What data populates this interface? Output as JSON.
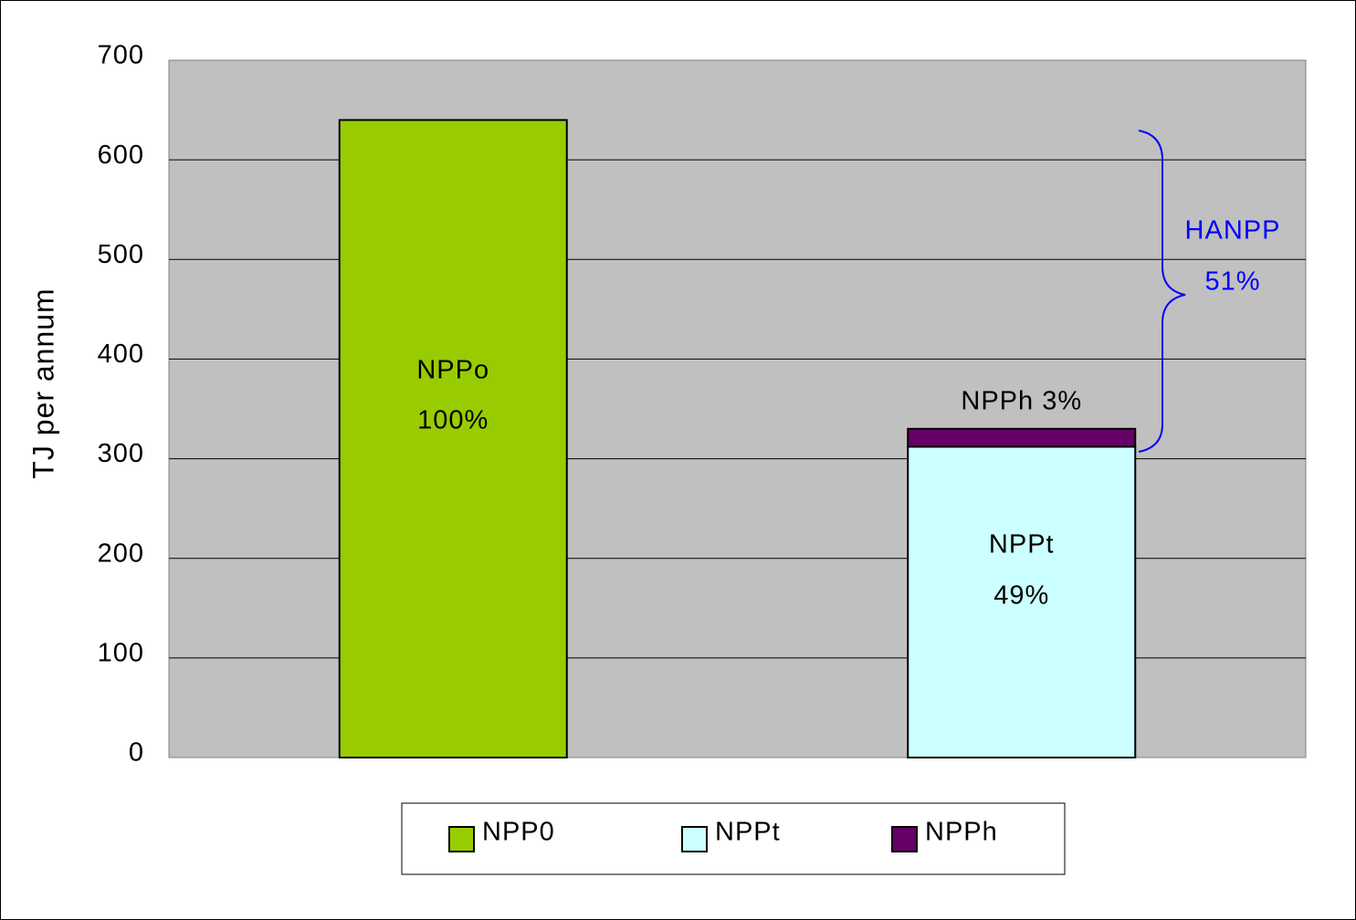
{
  "chart_data": {
    "type": "stacked_bar",
    "y_label": "TJ per annum",
    "categories": [
      null,
      null
    ],
    "series": [
      {
        "name": "NPP0",
        "color": "#99cc00",
        "values": [
          640,
          null
        ]
      },
      {
        "name": "NPPt",
        "color": "#ccffff",
        "values": [
          null,
          312
        ]
      },
      {
        "name": "NPPh",
        "color": "#660066",
        "values": [
          null,
          18
        ]
      }
    ],
    "ylim": [
      0,
      700
    ],
    "yticks": [
      0,
      100,
      200,
      300,
      400,
      500,
      600,
      700
    ],
    "grid": true,
    "legend": "bottom",
    "annotations": [
      "NPPo",
      "100%",
      "NPPt",
      "49%",
      "NPPh 3%",
      "HANPP",
      "51%"
    ],
    "annotation_color": "#0000ff"
  }
}
